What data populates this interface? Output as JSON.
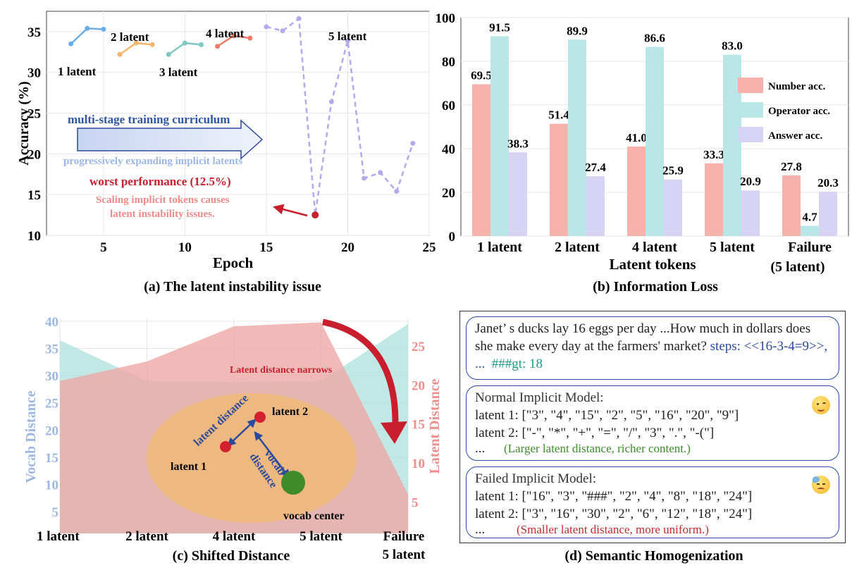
{
  "panel_a": {
    "caption": "(a) The latent instability issue",
    "labels": {
      "l1": "1 latent",
      "l2": "2 latent",
      "l3": "3 latent",
      "l4": "4 latent",
      "l5": "5 latent",
      "arrow_top": "multi-stage training curriculum",
      "arrow_bottom": "progressively expanding implicit latents",
      "worst": "worst performance (12.5%)",
      "note1": "Scaling implicit tokens causes",
      "note2": "latent instability issues."
    }
  },
  "panel_b": {
    "caption": "(b) Information Loss",
    "failure_line2": "(5 latent)"
  },
  "panel_c": {
    "caption": "(c) Shifted Distance",
    "narrows": "Latent distance narrows",
    "latent1": "latent 1",
    "latent2": "latent 2",
    "latent_distance": "latent distance",
    "vocab_distance": "vocab distance",
    "vocab_center": "vocab center"
  },
  "panel_d": {
    "caption": "(d) Semantic Homogenization",
    "question": "Janet’ s ducks lay 16 eggs per day ...How much in dollars does she make every day at the farmers' market?",
    "steps": "steps: <<16-3-4=9>>, ...",
    "gt": "###gt: 18",
    "normal_header": "Normal Implicit Model:",
    "normal_l1": "latent 1: [\"3\", \"4\", \"15\", \"2\", \"5\", \"16\", \"20\", \"9\"]",
    "normal_l2": "latent 2: [\"-\", \"*\", \"+\", \"=\", \"/\", \"3\", \".\", \"-(\"]",
    "ellipsis": "...",
    "normal_note": "(Larger latent distance, richer content.)",
    "failed_header": "Failed Implicit Model:",
    "failed_l1": "latent 1: [\"16\", \"3\", \"###\", \"2\", \"4\", \"8\", \"18\", \"24\"]",
    "failed_l2": "latent 2: [\"3\", \"16\", \"30\", \"2\", \"6\", \"12\", \"18\", \"24\"]",
    "failed_note": "(Smaller latent distance, more uniform.)"
  },
  "chart_data": [
    {
      "type": "line",
      "title": "(a) The latent instability issue",
      "xlabel": "Epoch",
      "ylabel": "Accuracy (%)",
      "xlim": [
        1.5,
        25
      ],
      "ylim": [
        10,
        37.5
      ],
      "xticks": [
        5,
        10,
        15,
        20,
        25
      ],
      "yticks": [
        10,
        15,
        20,
        25,
        30,
        35
      ],
      "series": [
        {
          "name": "1 latent",
          "color": "#6aaee8",
          "x": [
            3,
            4,
            5
          ],
          "y": [
            33.5,
            35.4,
            35.3
          ],
          "dashed": false
        },
        {
          "name": "2 latent",
          "color": "#f4b66f",
          "x": [
            6,
            7,
            8
          ],
          "y": [
            32.2,
            33.6,
            33.4
          ],
          "dashed": false
        },
        {
          "name": "3 latent",
          "color": "#7ec7c2",
          "x": [
            9,
            10,
            11
          ],
          "y": [
            32.2,
            33.6,
            33.4
          ],
          "dashed": false
        },
        {
          "name": "4 latent",
          "color": "#ee7a68",
          "x": [
            12,
            13,
            14
          ],
          "y": [
            33.2,
            34.5,
            34.2
          ],
          "dashed": false
        },
        {
          "name": "5 latent",
          "color": "#b3a9ec",
          "x": [
            15,
            16,
            17,
            18,
            19,
            20,
            21,
            22,
            23,
            24
          ],
          "y": [
            35.6,
            35.1,
            36.6,
            12.5,
            26.4,
            33.9,
            17.0,
            17.7,
            15.4,
            21.3
          ],
          "dashed": true
        }
      ],
      "annotations": [
        {
          "x": 18,
          "y": 12.5,
          "text": "worst performance (12.5%)"
        }
      ]
    },
    {
      "type": "bar",
      "title": "(b) Information Loss",
      "xlabel": "Latent tokens",
      "ylabel": "",
      "ylim": [
        0,
        100
      ],
      "yticks": [
        0,
        20,
        40,
        60,
        80,
        100
      ],
      "categories": [
        "1 latent",
        "2 latent",
        "4 latent",
        "5 latent",
        "Failure"
      ],
      "legend_position": "right",
      "series": [
        {
          "name": "Number acc.",
          "color": "#f7b2ab",
          "values": [
            69.5,
            51.4,
            41.0,
            33.3,
            27.8
          ],
          "value_labels": [
            "69.5",
            "51.4",
            "41.0",
            "33.3",
            "27.8"
          ]
        },
        {
          "name": "Operator acc.",
          "color": "#b9e7e7",
          "values": [
            91.5,
            89.9,
            86.6,
            83.0,
            4.7
          ],
          "value_labels": [
            "91.5",
            "89.9",
            "86.6",
            "83.0",
            "4.7"
          ]
        },
        {
          "name": "Answer acc.",
          "color": "#d7d3f4",
          "values": [
            38.3,
            27.4,
            25.9,
            20.9,
            20.3
          ],
          "value_labels": [
            "38.3",
            "27.4",
            "25.9",
            "20.9",
            "20.3"
          ]
        }
      ]
    },
    {
      "type": "area",
      "title": "(c) Shifted Distance",
      "categories": [
        "1 latent",
        "2 latent",
        "4 latent",
        "5 latent",
        "Failure"
      ],
      "category_sub": "5 latent",
      "series": [
        {
          "name": "Vocab Distance",
          "color": "#a8dedc",
          "axis": "left",
          "values": [
            36.5,
            29.0,
            28.8,
            29.0,
            39.5
          ]
        },
        {
          "name": "Latent Distance",
          "color": "#eda8a5",
          "axis": "right",
          "values": [
            20.5,
            23.0,
            27.5,
            28.0,
            6.0
          ]
        }
      ],
      "ylabel_left": "Vocab Distance",
      "ylabel_right": "Latent Distance",
      "yticks_left": [
        5,
        10,
        15,
        20,
        25,
        30,
        35,
        40
      ],
      "yticks_right": [
        5,
        10,
        15,
        20,
        25
      ],
      "ylim_left": [
        1,
        40.5
      ],
      "ylim_right": [
        1,
        28.5
      ]
    }
  ]
}
